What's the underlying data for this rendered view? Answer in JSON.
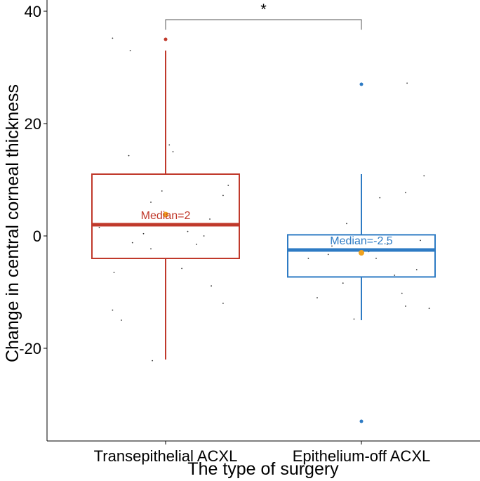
{
  "chart_data": {
    "type": "box",
    "xlabel": "The type of surgery",
    "ylabel": "Change in central corneal thickness",
    "ylim": [
      -36.5,
      42
    ],
    "yticks": [
      {
        "value": 40,
        "label": "40"
      },
      {
        "value": 20,
        "label": "20"
      },
      {
        "value": 0,
        "label": "0"
      },
      {
        "value": -20,
        "label": "-20"
      }
    ],
    "categories": [
      "Transepithelial ACXL",
      "Epithelium-off ACXL"
    ],
    "series": [
      {
        "category": "Transepithelial ACXL",
        "color": "#c0392b",
        "whisker_low": -22,
        "q1": -4,
        "median": 2,
        "q3": 11,
        "whisker_high": 33,
        "mean": 3.8,
        "outliers": [
          35
        ],
        "median_label": "Median=2",
        "jitter": [
          [
            -0.72,
            35.2
          ],
          [
            -0.48,
            33.0
          ],
          [
            -0.5,
            14.3
          ],
          [
            0.05,
            16.2
          ],
          [
            0.1,
            15.0
          ],
          [
            -0.2,
            6.0
          ],
          [
            0.85,
            9.0
          ],
          [
            0.78,
            7.2
          ],
          [
            -0.9,
            1.5
          ],
          [
            -0.78,
            -4.0
          ],
          [
            -0.45,
            -1.2
          ],
          [
            -0.2,
            -2.3
          ],
          [
            0.42,
            -1.5
          ],
          [
            0.22,
            -5.8
          ],
          [
            -0.7,
            -6.5
          ],
          [
            0.62,
            -8.9
          ],
          [
            0.78,
            -12.0
          ],
          [
            -0.72,
            -13.2
          ],
          [
            -0.6,
            -15.0
          ],
          [
            -0.18,
            -22.2
          ],
          [
            0.52,
            0.0
          ],
          [
            -0.3,
            0.4
          ],
          [
            0.3,
            0.8
          ],
          [
            -0.05,
            8.0
          ],
          [
            0.6,
            3.0
          ]
        ]
      },
      {
        "category": "Epithelium-off ACXL",
        "color": "#2e7bc4",
        "whisker_low": -15,
        "q1": -7.3,
        "median": -2.5,
        "q3": 0.2,
        "whisker_high": 11,
        "mean": -3,
        "outliers": [
          27,
          -33
        ],
        "median_label": "Median=-2.5",
        "jitter": [
          [
            0.62,
            27.2
          ],
          [
            0.85,
            10.7
          ],
          [
            0.6,
            7.7
          ],
          [
            0.25,
            6.8
          ],
          [
            0.8,
            -0.8
          ],
          [
            -0.45,
            -3.3
          ],
          [
            0.45,
            -7.0
          ],
          [
            -0.25,
            -8.4
          ],
          [
            -0.6,
            -11.0
          ],
          [
            0.55,
            -10.2
          ],
          [
            0.6,
            -12.5
          ],
          [
            0.92,
            -12.9
          ],
          [
            -0.1,
            -14.8
          ],
          [
            -0.72,
            -4.0
          ],
          [
            0.2,
            -4.0
          ],
          [
            -0.4,
            -1.8
          ],
          [
            0.35,
            -1.5
          ],
          [
            0.75,
            -6.0
          ],
          [
            -0.2,
            2.2
          ],
          [
            0.1,
            -2.8
          ]
        ]
      }
    ],
    "significance": {
      "label": "*",
      "y": 38.5,
      "drop": 1.8
    }
  }
}
